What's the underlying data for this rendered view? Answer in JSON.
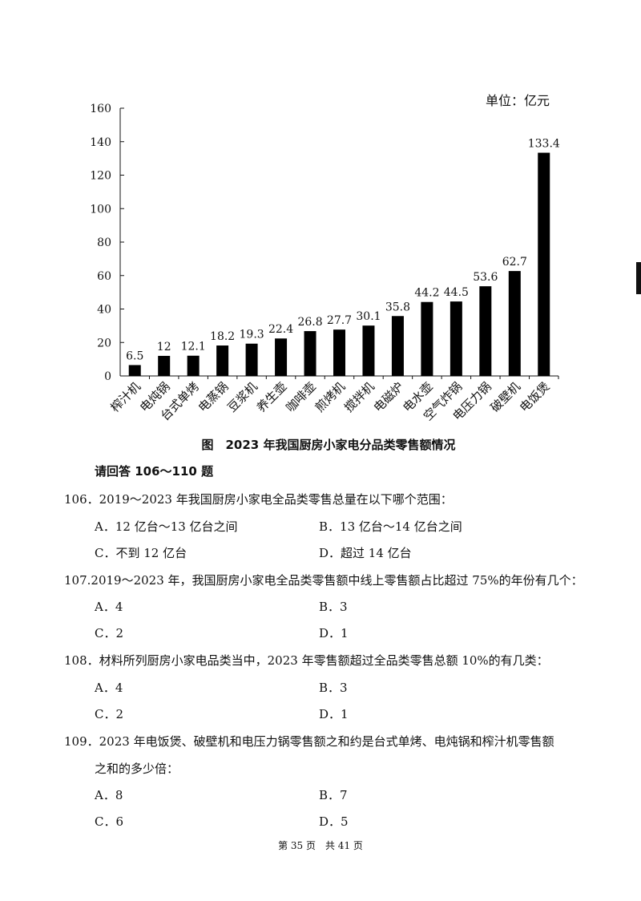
{
  "chart_data": {
    "type": "bar",
    "unit_label": "单位：亿元",
    "categories": [
      "榨汁机",
      "电炖锅",
      "台式单烤",
      "电蒸锅",
      "豆浆机",
      "养生壶",
      "咖啡壶",
      "煎烤机",
      "搅拌机",
      "电磁炉",
      "电水壶",
      "空气炸锅",
      "电压力锅",
      "破壁机",
      "电饭煲"
    ],
    "values": [
      6.5,
      12,
      12.1,
      18.2,
      19.3,
      22.4,
      26.8,
      27.7,
      30.1,
      35.8,
      44.2,
      44.5,
      53.6,
      62.7,
      133.4
    ],
    "value_labels": [
      "6.5",
      "12",
      "12.1",
      "18.2",
      "19.3",
      "22.4",
      "26.8",
      "27.7",
      "30.1",
      "35.8",
      "44.2",
      "44.5",
      "53.6",
      "62.7",
      "133.4"
    ],
    "y_ticks": [
      "0",
      "20",
      "40",
      "60",
      "80",
      "100",
      "120",
      "140",
      "160"
    ],
    "ylim": [
      0,
      160
    ],
    "title": "图　2023 年我国厨房小家电分品类零售额情况",
    "color": "#000000"
  },
  "instruction": "请回答 106～110 题",
  "questions": [
    {
      "text": "106．2019～2023 年我国厨房小家电全品类零售总量在以下哪个范围：",
      "options": [
        "A．12 亿台～13 亿台之间",
        "B．13 亿台～14 亿台之间",
        "C．不到 12 亿台",
        "D．超过 14 亿台"
      ]
    },
    {
      "text": "107.2019～2023 年，我国厨房小家电全品类零售额中线上零售额占比超过 75%的年份有几个：",
      "options": [
        "A．4",
        "B．3",
        "C．2",
        "D．1"
      ]
    },
    {
      "text": "108．材料所列厨房小家电品类当中，2023 年零售额超过全品类零售总额 10%的有几类：",
      "options": [
        "A．4",
        "B．3",
        "C．2",
        "D．1"
      ]
    },
    {
      "text": "109．2023 年电饭煲、破壁机和电压力锅零售额之和约是台式单烤、电炖锅和榨汁机零售额",
      "text2": "之和的多少倍：",
      "options": [
        "A．8",
        "B．7",
        "C．6",
        "D．5"
      ]
    }
  ],
  "footer": "第 35 页　共 41 页"
}
